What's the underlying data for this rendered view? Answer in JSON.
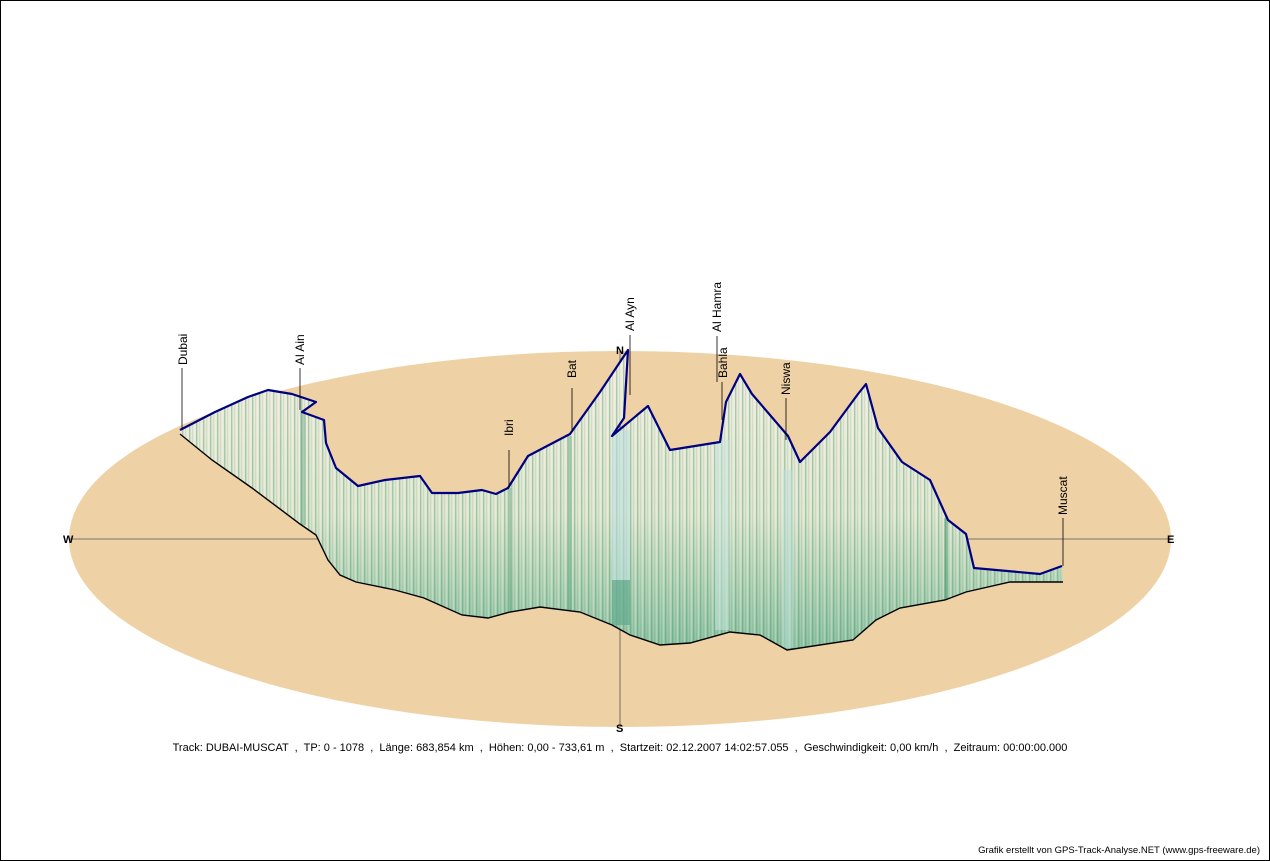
{
  "compass": {
    "north": "N",
    "south": "S",
    "west": "W",
    "east": "E"
  },
  "towns": [
    {
      "name": "Dubai"
    },
    {
      "name": "Al Ain"
    },
    {
      "name": "Ibri"
    },
    {
      "name": "Bat"
    },
    {
      "name": "Al Ayn"
    },
    {
      "name": "Al Hamra"
    },
    {
      "name": "Bahla"
    },
    {
      "name": "Niswa"
    },
    {
      "name": "Muscat"
    }
  ],
  "info_line": "Track: DUBAI-MUSCAT  ,  TP: 0 - 1078  ,  Länge: 683,854 km  ,  Höhen: 0,00 - 733,61 m  ,  Startzeit: 02.12.2007 14:02:57.055  ,  Geschwindigkeit: 0,00 km/h  ,  Zeitraum: 00:00:00.000",
  "credit": "Grafik erstellt von GPS-Track-Analyse.NET (www.gps-freeware.de)",
  "colors": {
    "ellipse_fill": "#eed2a5",
    "elevation_line": "#000080",
    "ground_line": "#000000",
    "curtain_light": "#eef2e6",
    "curtain_dark": "#1f7a50"
  }
}
